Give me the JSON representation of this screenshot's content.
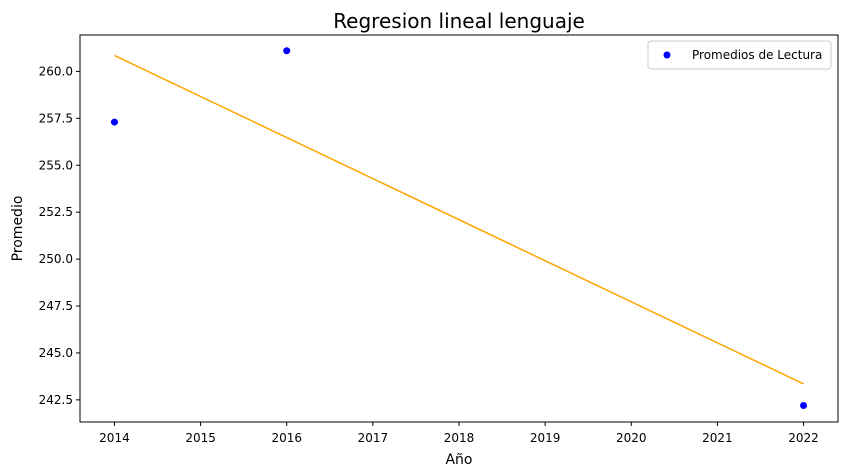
{
  "chart_data": {
    "type": "scatter",
    "title": "Regresion lineal lenguaje",
    "xlabel": "Año",
    "ylabel": "Promedio",
    "xlim": [
      2013.6,
      2022.4
    ],
    "ylim": [
      241.32,
      261.94
    ],
    "x_ticks": [
      2014,
      2015,
      2016,
      2017,
      2018,
      2019,
      2020,
      2021,
      2022
    ],
    "y_ticks": [
      242.5,
      245.0,
      247.5,
      250.0,
      252.5,
      255.0,
      257.5,
      260.0
    ],
    "y_tick_labels": [
      "242.5",
      "245.0",
      "247.5",
      "250.0",
      "252.5",
      "255.0",
      "257.5",
      "260.0"
    ],
    "grid": false,
    "legend_position": "top-right",
    "series": [
      {
        "name": "Promedios de Lectura",
        "kind": "scatter",
        "color": "#0000ff",
        "x": [
          2014,
          2016,
          2022
        ],
        "y": [
          257.3,
          261.1,
          242.2
        ]
      },
      {
        "kind": "line",
        "color": "#ffa500",
        "x": [
          2014,
          2022
        ],
        "y": [
          260.85,
          243.35
        ]
      }
    ]
  }
}
